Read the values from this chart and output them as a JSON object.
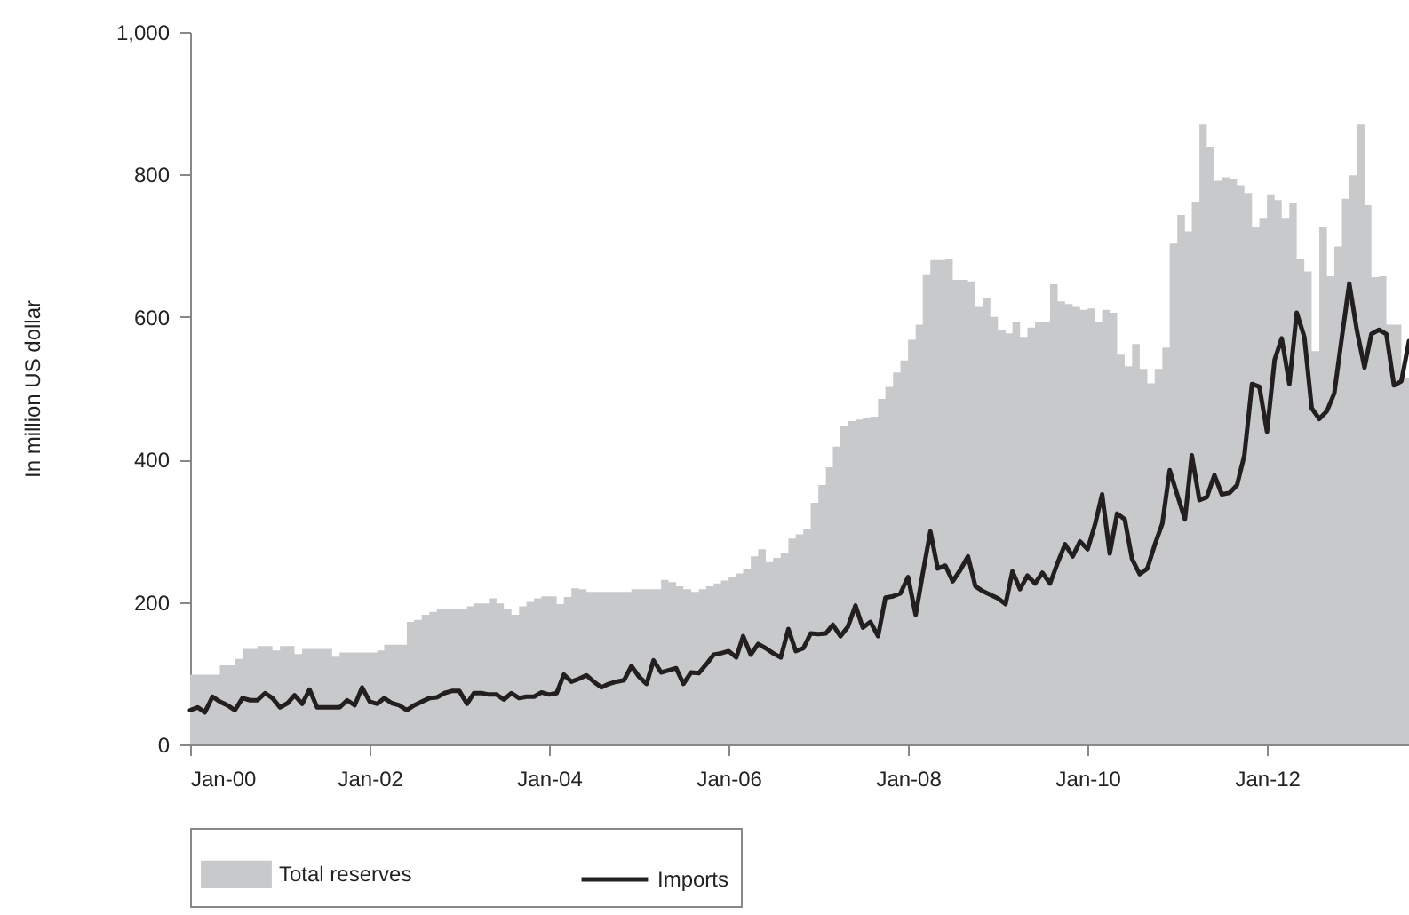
{
  "chart_data": {
    "type": "area",
    "ylabel": "In million US dollar",
    "x": [
      "2000-01",
      "2000-02",
      "2000-03",
      "2000-04",
      "2000-05",
      "2000-06",
      "2000-07",
      "2000-08",
      "2000-09",
      "2000-10",
      "2000-11",
      "2000-12",
      "2001-01",
      "2001-02",
      "2001-03",
      "2001-04",
      "2001-05",
      "2001-06",
      "2001-07",
      "2001-08",
      "2001-09",
      "2001-10",
      "2001-11",
      "2001-12",
      "2002-01",
      "2002-02",
      "2002-03",
      "2002-04",
      "2002-05",
      "2002-06",
      "2002-07",
      "2002-08",
      "2002-09",
      "2002-10",
      "2002-11",
      "2002-12",
      "2003-01",
      "2003-02",
      "2003-03",
      "2003-04",
      "2003-05",
      "2003-06",
      "2003-07",
      "2003-08",
      "2003-09",
      "2003-10",
      "2003-11",
      "2003-12",
      "2004-01",
      "2004-02",
      "2004-03",
      "2004-04",
      "2004-05",
      "2004-06",
      "2004-07",
      "2004-08",
      "2004-09",
      "2004-10",
      "2004-11",
      "2004-12",
      "2005-01",
      "2005-02",
      "2005-03",
      "2005-04",
      "2005-05",
      "2005-06",
      "2005-07",
      "2005-08",
      "2005-09",
      "2005-10",
      "2005-11",
      "2005-12",
      "2006-01",
      "2006-02",
      "2006-03",
      "2006-04",
      "2006-05",
      "2006-06",
      "2006-07",
      "2006-08",
      "2006-09",
      "2006-10",
      "2006-11",
      "2006-12",
      "2007-01",
      "2007-02",
      "2007-03",
      "2007-04",
      "2007-05",
      "2007-06",
      "2007-07",
      "2007-08",
      "2007-09",
      "2007-10",
      "2007-11",
      "2007-12",
      "2008-01",
      "2008-02",
      "2008-03",
      "2008-04",
      "2008-05",
      "2008-06",
      "2008-07",
      "2008-08",
      "2008-09",
      "2008-10",
      "2008-11",
      "2008-12",
      "2009-01",
      "2009-02",
      "2009-03",
      "2009-04",
      "2009-05",
      "2009-06",
      "2009-07",
      "2009-08",
      "2009-09",
      "2009-10",
      "2009-11",
      "2009-12",
      "2010-01",
      "2010-02",
      "2010-03",
      "2010-04",
      "2010-05",
      "2010-06",
      "2010-07",
      "2010-08",
      "2010-09",
      "2010-10",
      "2010-11",
      "2010-12",
      "2011-01",
      "2011-02",
      "2011-03",
      "2011-04",
      "2011-05",
      "2011-06",
      "2011-07",
      "2011-08",
      "2011-09",
      "2011-10",
      "2011-11",
      "2011-12",
      "2012-01",
      "2012-02",
      "2012-03",
      "2012-04",
      "2012-05",
      "2012-06",
      "2012-07",
      "2012-08",
      "2012-09",
      "2012-10",
      "2012-11",
      "2012-12",
      "2013-01",
      "2013-02",
      "2013-03",
      "2013-04",
      "2013-05",
      "2013-06",
      "2013-07",
      "2013-08"
    ],
    "series": [
      {
        "name": "Total reserves",
        "color": "#c8c9cb",
        "values": [
          98,
          98,
          98,
          98,
          111,
          111,
          120,
          134,
          134,
          138,
          138,
          132,
          138,
          138,
          127,
          134,
          134,
          134,
          134,
          123,
          129,
          129,
          129,
          129,
          129,
          132,
          140,
          140,
          140,
          172,
          175,
          182,
          186,
          190,
          190,
          190,
          190,
          194,
          198,
          198,
          205,
          198,
          190,
          182,
          194,
          200,
          205,
          208,
          208,
          197,
          207,
          219,
          218,
          214,
          214,
          214,
          214,
          214,
          214,
          218,
          218,
          218,
          218,
          231,
          228,
          222,
          218,
          214,
          218,
          222,
          226,
          230,
          235,
          240,
          247,
          264,
          274,
          256,
          262,
          268,
          289,
          295,
          302,
          339,
          364,
          389,
          418,
          447,
          454,
          456,
          458,
          460,
          485,
          502,
          522,
          539,
          568,
          589,
          660,
          680,
          680,
          682,
          652,
          652,
          650,
          614,
          627,
          600,
          581,
          577,
          593,
          572,
          585,
          593,
          593,
          646,
          622,
          618,
          614,
          610,
          612,
          593,
          610,
          606,
          547,
          531,
          562,
          527,
          507,
          527,
          557,
          703,
          743,
          720,
          762,
          870,
          839,
          791,
          796,
          793,
          785,
          774,
          727,
          739,
          772,
          764,
          739,
          760,
          681,
          664,
          552,
          727,
          657,
          699,
          766,
          799,
          870,
          757,
          656,
          657,
          589,
          589,
          514,
          500
        ]
      },
      {
        "name": "Imports",
        "type": "line",
        "color": "#231f20",
        "values": [
          48,
          52,
          45,
          67,
          60,
          55,
          48,
          65,
          62,
          62,
          72,
          65,
          52,
          58,
          69,
          57,
          77,
          52,
          52,
          52,
          52,
          62,
          55,
          80,
          60,
          57,
          65,
          58,
          55,
          48,
          55,
          60,
          65,
          66,
          72,
          75,
          75,
          57,
          72,
          72,
          70,
          70,
          63,
          72,
          65,
          67,
          67,
          73,
          70,
          72,
          98,
          88,
          92,
          97,
          88,
          80,
          85,
          88,
          90,
          110,
          95,
          85,
          118,
          101,
          104,
          107,
          85,
          101,
          100,
          112,
          126,
          128,
          131,
          122,
          152,
          126,
          141,
          135,
          128,
          122,
          162,
          131,
          135,
          156,
          155,
          156,
          168,
          152,
          165,
          195,
          164,
          172,
          152,
          206,
          208,
          212,
          235,
          182,
          240,
          299,
          247,
          251,
          229,
          245,
          264,
          222,
          215,
          210,
          205,
          197,
          243,
          218,
          237,
          226,
          241,
          226,
          255,
          281,
          264,
          285,
          274,
          310,
          351,
          268,
          324,
          316,
          260,
          239,
          247,
          280,
          310,
          385,
          350,
          316,
          406,
          343,
          347,
          378,
          351,
          353,
          364,
          406,
          506,
          502,
          439,
          540,
          570,
          506,
          606,
          572,
          472,
          457,
          468,
          493,
          572,
          647,
          581,
          529,
          576,
          582,
          576,
          504,
          510,
          566
        ]
      }
    ],
    "xlim": [
      "2000-01",
      "2013-08"
    ],
    "xticks": [
      {
        "value": "2000-01",
        "label": "Jan-00"
      },
      {
        "value": "2002-01",
        "label": "Jan-02"
      },
      {
        "value": "2004-01",
        "label": "Jan-04"
      },
      {
        "value": "2006-01",
        "label": "Jan-06"
      },
      {
        "value": "2008-01",
        "label": "Jan-08"
      },
      {
        "value": "2010-01",
        "label": "Jan-10"
      },
      {
        "value": "2012-01",
        "label": "Jan-12"
      }
    ],
    "ylim": [
      0,
      1000
    ],
    "yticks": [
      0,
      200,
      400,
      600,
      800,
      {
        "value": 1000,
        "label": "1,000"
      }
    ],
    "grid": false,
    "legend": "bottom",
    "line_style": "solid",
    "marker": "none"
  }
}
